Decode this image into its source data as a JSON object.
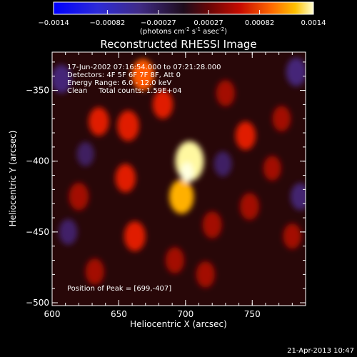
{
  "chart_data": {
    "type": "heatmap",
    "title": "Reconstructed RHESSI Image",
    "xlabel": "Heliocentric X (arcsec)",
    "ylabel": "Heliocentric Y (arcsec)",
    "xlim": [
      600,
      790
    ],
    "ylim": [
      -502,
      -323
    ],
    "x_ticks": [
      600,
      650,
      700,
      750
    ],
    "x_tick_labels": [
      "600",
      "650",
      "700",
      "750"
    ],
    "y_ticks": [
      -350,
      -400,
      -450,
      -500
    ],
    "y_tick_labels": [
      "-350",
      "-400",
      "-450",
      "-500"
    ],
    "colorbar": {
      "min": -0.0014,
      "max": 0.0014,
      "ticks": [
        -0.0014,
        -0.00082,
        -0.00027,
        0.00027,
        0.00082,
        0.0014
      ],
      "tick_labels": [
        "-0.0014",
        "-0.00082",
        "-0.00027",
        "0.00027",
        "0.00082",
        "0.0014"
      ],
      "label_main": "(photons cm",
      "label_sup1": "-2",
      "label_mid": " s",
      "label_sup2": "-1",
      "label_end": " asec",
      "label_sup3": "-2",
      "label_close": ")"
    },
    "annotations": [
      "17-Jun-2002 07:16:54.000 to 07:21:28.000",
      "Detectors: 4F 5F 6F 7F 8F, Att 0",
      "Energy Range: 6.0 - 12.0 keV",
      "Clean     Total counts: 1.59E+04"
    ],
    "peak_label": "Position of Peak = [699,-407]",
    "peak": [
      699,
      -407
    ],
    "features": [
      {
        "x": 703,
        "y": -400,
        "value": 0.0014
      },
      {
        "x": 697,
        "y": -425,
        "value": 0.001
      },
      {
        "x": 668,
        "y": -339,
        "value": 0.00082
      },
      {
        "x": 657,
        "y": -375,
        "value": 0.00075
      },
      {
        "x": 662,
        "y": -453,
        "value": 0.0007
      },
      {
        "x": 683,
        "y": -360,
        "value": 0.0006
      },
      {
        "x": 745,
        "y": -382,
        "value": 0.0006
      },
      {
        "x": 635,
        "y": -372,
        "value": 0.0006
      },
      {
        "x": 620,
        "y": -425,
        "value": 0.00055
      },
      {
        "x": 655,
        "y": -412,
        "value": 0.0006
      },
      {
        "x": 720,
        "y": -445,
        "value": 0.0005
      },
      {
        "x": 748,
        "y": -432,
        "value": 0.0005
      },
      {
        "x": 730,
        "y": -352,
        "value": 0.00045
      },
      {
        "x": 772,
        "y": -370,
        "value": 0.0004
      },
      {
        "x": 632,
        "y": -478,
        "value": 0.00045
      },
      {
        "x": 715,
        "y": -480,
        "value": 0.00045
      },
      {
        "x": 780,
        "y": -453,
        "value": 0.0004
      },
      {
        "x": 692,
        "y": -470,
        "value": 0.00045
      },
      {
        "x": 765,
        "y": -405,
        "value": 0.00035
      },
      {
        "x": 607,
        "y": -342,
        "value": -0.0006
      },
      {
        "x": 783,
        "y": -337,
        "value": -0.0006
      },
      {
        "x": 612,
        "y": -450,
        "value": -0.0004
      },
      {
        "x": 728,
        "y": -402,
        "value": -0.00035
      },
      {
        "x": 786,
        "y": -425,
        "value": -0.0005
      },
      {
        "x": 625,
        "y": -395,
        "value": -0.0003
      }
    ]
  },
  "footer": {
    "date": "21-Apr-2013 10:47"
  }
}
